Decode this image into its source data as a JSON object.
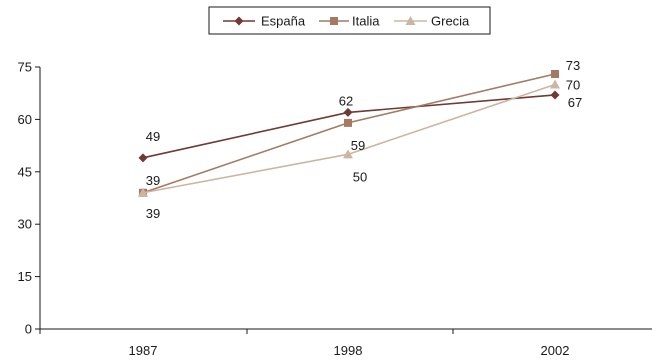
{
  "chart_data": {
    "type": "line",
    "categories": [
      "1987",
      "1998",
      "2002"
    ],
    "ylim": [
      0,
      75
    ],
    "yticks": [
      0,
      15,
      30,
      45,
      60,
      75
    ],
    "grid": false,
    "legend_position": "top-center",
    "series": [
      {
        "name": "España",
        "values": [
          49,
          62,
          67
        ],
        "color": "#6e3a34",
        "marker": "diamond"
      },
      {
        "name": "Italia",
        "values": [
          39,
          59,
          73
        ],
        "color": "#a47a64",
        "marker": "square"
      },
      {
        "name": "Grecia",
        "values": [
          39,
          50,
          70
        ],
        "color": "#cdb5a3",
        "marker": "triangle"
      }
    ]
  }
}
